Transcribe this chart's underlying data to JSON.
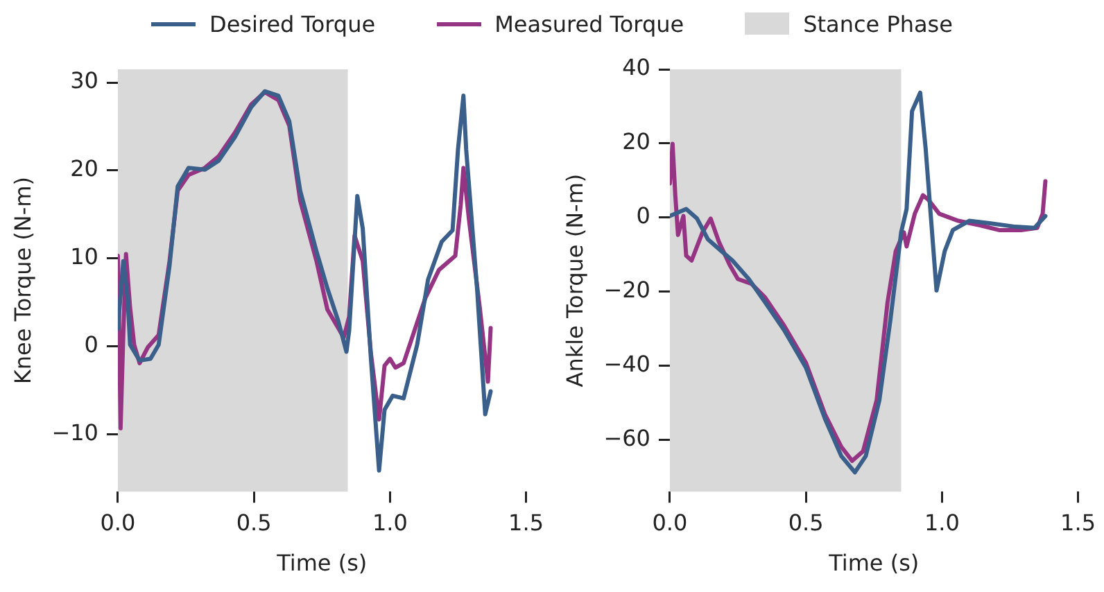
{
  "chart_data": [
    {
      "type": "line",
      "xlabel": "Time (s)",
      "ylabel": "Knee Torque (N-m)",
      "legend": "top",
      "grid": false,
      "marker": "none",
      "line_style": "solid",
      "xlim": [
        0,
        1.5
      ],
      "ylim": [
        -16.5,
        31.5
      ],
      "xticks": [
        {
          "value": 0,
          "label": "0.0"
        },
        {
          "value": 0.5,
          "label": "0.5"
        },
        {
          "value": 1,
          "label": "1.0"
        },
        {
          "value": 1.5,
          "label": "1.5"
        }
      ],
      "yticks": [
        {
          "value": -10,
          "label": "−10"
        },
        0,
        10,
        20,
        30
      ],
      "bands": [
        {
          "axis": "x",
          "from": 0,
          "to": 0.845,
          "label": "Stance Phase",
          "color": "#d9d9d9"
        }
      ],
      "series": [
        {
          "name": "Desired Torque",
          "color": "#3a5f8a",
          "x": [
            0,
            0.02,
            0.036,
            0.045,
            0.08,
            0.12,
            0.15,
            0.19,
            0.22,
            0.26,
            0.32,
            0.37,
            0.43,
            0.49,
            0.54,
            0.59,
            0.63,
            0.67,
            0.73,
            0.77,
            0.81,
            0.84,
            0.85,
            0.88,
            0.9,
            0.93,
            0.96,
            0.98,
            1.01,
            1.05,
            1.1,
            1.14,
            1.19,
            1.23,
            1.25,
            1.27,
            1.28,
            1.32,
            1.35,
            1.37
          ],
          "values": [
            2,
            9.7,
            5.5,
            0.2,
            -1.6,
            -1.4,
            0.2,
            9.2,
            18.2,
            20.3,
            20.1,
            21.1,
            23.8,
            27.2,
            29.0,
            28.5,
            25.6,
            17.7,
            10.8,
            6.6,
            2.9,
            -0.6,
            1.8,
            17.1,
            13.4,
            -1.4,
            -14.1,
            -7.2,
            -5.6,
            -5.9,
            0.2,
            7.6,
            11.9,
            13.2,
            22.4,
            28.5,
            22.4,
            6.6,
            -7.7,
            -5.1
          ]
        },
        {
          "name": "Measured Torque",
          "color": "#963484",
          "x": [
            0,
            0.003,
            0.01,
            0.02,
            0.03,
            0.045,
            0.06,
            0.08,
            0.11,
            0.15,
            0.19,
            0.22,
            0.26,
            0.32,
            0.37,
            0.43,
            0.49,
            0.54,
            0.59,
            0.63,
            0.67,
            0.73,
            0.77,
            0.81,
            0.83,
            0.85,
            0.87,
            0.9,
            0.93,
            0.96,
            0.98,
            1.0,
            1.02,
            1.05,
            1.13,
            1.18,
            1.24,
            1.26,
            1.27,
            1.29,
            1.33,
            1.36,
            1.37
          ],
          "values": [
            10.3,
            6.6,
            -9.3,
            1.3,
            10.5,
            4.4,
            0.2,
            -1.9,
            -0.1,
            1.3,
            9.7,
            17.7,
            19.5,
            20.3,
            21.6,
            24.3,
            27.5,
            28.9,
            28.0,
            25.1,
            16.6,
            9.7,
            4.2,
            2.1,
            1.0,
            3.4,
            12.6,
            9.7,
            -0.8,
            -8.3,
            -2.2,
            -1.4,
            -2.4,
            -1.9,
            5.5,
            8.7,
            10.3,
            16.1,
            20.3,
            14.5,
            4.4,
            -4.0,
            2.1
          ]
        }
      ]
    },
    {
      "type": "line",
      "xlabel": "Time (s)",
      "ylabel": "Ankle Torque (N-m)",
      "grid": false,
      "marker": "none",
      "line_style": "solid",
      "xlim": [
        0,
        1.5
      ],
      "ylim": [
        -74,
        40
      ],
      "xticks": [
        {
          "value": 0,
          "label": "0.0"
        },
        {
          "value": 0.5,
          "label": "0.5"
        },
        {
          "value": 1,
          "label": "1.0"
        },
        {
          "value": 1.5,
          "label": "1.5"
        }
      ],
      "yticks": [
        {
          "value": -60,
          "label": "−60"
        },
        {
          "value": -40,
          "label": "−40"
        },
        {
          "value": -20,
          "label": "−20"
        },
        0,
        20,
        40
      ],
      "bands": [
        {
          "axis": "x",
          "from": 0,
          "to": 0.85,
          "color": "#d9d9d9"
        }
      ],
      "series": [
        {
          "color": "#3a5f8a",
          "x": [
            0,
            0.06,
            0.1,
            0.14,
            0.19,
            0.23,
            0.29,
            0.35,
            0.42,
            0.5,
            0.57,
            0.63,
            0.68,
            0.72,
            0.77,
            0.81,
            0.85,
            0.87,
            0.89,
            0.92,
            0.94,
            0.98,
            1.01,
            1.04,
            1.1,
            1.17,
            1.27,
            1.34,
            1.38
          ],
          "values": [
            0.4,
            2.3,
            -0.3,
            -5.9,
            -9.1,
            -11.6,
            -16.6,
            -22.9,
            -30.4,
            -40.5,
            -54.3,
            -64.4,
            -68.8,
            -64.4,
            -49.3,
            -27.9,
            -4.0,
            2.3,
            28.7,
            33.7,
            18.6,
            -19.7,
            -9.1,
            -3.4,
            -0.9,
            -1.5,
            -2.5,
            -2.8,
            0.4
          ]
        },
        {
          "color": "#963484",
          "x": [
            0,
            0.01,
            0.02,
            0.03,
            0.05,
            0.06,
            0.08,
            0.12,
            0.15,
            0.18,
            0.22,
            0.25,
            0.3,
            0.35,
            0.42,
            0.5,
            0.57,
            0.63,
            0.67,
            0.71,
            0.76,
            0.8,
            0.83,
            0.86,
            0.87,
            0.9,
            0.93,
            0.95,
            0.99,
            1.06,
            1.14,
            1.21,
            1.29,
            1.35,
            1.37,
            1.38
          ],
          "values": [
            9.2,
            19.9,
            6.0,
            -4.7,
            0.4,
            -10.3,
            -11.6,
            -4.0,
            -0.3,
            -6.5,
            -12.8,
            -16.6,
            -17.9,
            -21.6,
            -29.2,
            -39.2,
            -53.1,
            -61.9,
            -65.7,
            -63.1,
            -49.3,
            -22.9,
            -9.1,
            -4.0,
            -7.8,
            1.0,
            6.0,
            4.8,
            1.0,
            -0.9,
            -2.1,
            -3.4,
            -3.4,
            -2.8,
            1.0,
            9.8
          ]
        }
      ]
    }
  ]
}
